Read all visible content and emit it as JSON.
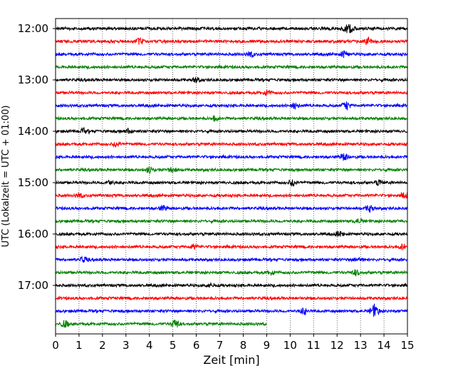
{
  "chart_data": {
    "type": "line",
    "title": "",
    "xlabel": "Zeit  [min]",
    "ylabel": "UTC (Lokalzeit = UTC + 01:00)",
    "xlim": [
      0,
      15
    ],
    "x_ticks": [
      0,
      1,
      2,
      3,
      4,
      5,
      6,
      7,
      8,
      9,
      10,
      11,
      12,
      13,
      14,
      15
    ],
    "y_tick_labels": [
      "12:00",
      "13:00",
      "14:00",
      "15:00",
      "16:00",
      "17:00"
    ],
    "grid": "vertical dotted",
    "colors": [
      "#000000",
      "#ff0000",
      "#0000ff",
      "#008000"
    ],
    "traces": [
      {
        "start": "12:00",
        "color": "#000000",
        "x_end": 15,
        "events": [
          {
            "x": 12.4,
            "amp": 2.2
          },
          {
            "x": 12.6,
            "amp": 2.0
          }
        ]
      },
      {
        "start": "12:15",
        "color": "#ff0000",
        "x_end": 15,
        "events": [
          {
            "x": 3.6,
            "amp": 2.0
          },
          {
            "x": 13.3,
            "amp": 2.4
          }
        ]
      },
      {
        "start": "12:30",
        "color": "#0000ff",
        "x_end": 15,
        "events": [
          {
            "x": 8.3,
            "amp": 1.6
          },
          {
            "x": 12.3,
            "amp": 1.8
          }
        ]
      },
      {
        "start": "12:45",
        "color": "#008000",
        "x_end": 15,
        "events": []
      },
      {
        "start": "13:00",
        "color": "#000000",
        "x_end": 15,
        "events": [
          {
            "x": 6.0,
            "amp": 1.6
          }
        ]
      },
      {
        "start": "13:15",
        "color": "#ff0000",
        "x_end": 15,
        "events": [
          {
            "x": 9.0,
            "amp": 1.5
          }
        ]
      },
      {
        "start": "13:30",
        "color": "#0000ff",
        "x_end": 15,
        "events": [
          {
            "x": 10.2,
            "amp": 1.9
          },
          {
            "x": 12.4,
            "amp": 2.6
          }
        ]
      },
      {
        "start": "13:45",
        "color": "#008000",
        "x_end": 15,
        "events": [
          {
            "x": 6.8,
            "amp": 1.4
          }
        ]
      },
      {
        "start": "14:00",
        "color": "#000000",
        "x_end": 15,
        "events": [
          {
            "x": 1.2,
            "amp": 1.4
          },
          {
            "x": 3.1,
            "amp": 1.4
          }
        ]
      },
      {
        "start": "14:15",
        "color": "#ff0000",
        "x_end": 15,
        "events": [
          {
            "x": 2.6,
            "amp": 1.4
          }
        ]
      },
      {
        "start": "14:30",
        "color": "#0000ff",
        "x_end": 15,
        "events": [
          {
            "x": 12.3,
            "amp": 2.4
          }
        ]
      },
      {
        "start": "14:45",
        "color": "#008000",
        "x_end": 15,
        "events": [
          {
            "x": 4.0,
            "amp": 1.7
          },
          {
            "x": 5.0,
            "amp": 1.5
          }
        ]
      },
      {
        "start": "15:00",
        "color": "#000000",
        "x_end": 15,
        "events": [
          {
            "x": 2.3,
            "amp": 1.5
          },
          {
            "x": 10.1,
            "amp": 1.9
          },
          {
            "x": 13.8,
            "amp": 1.6
          }
        ]
      },
      {
        "start": "15:15",
        "color": "#ff0000",
        "x_end": 15,
        "events": [
          {
            "x": 1.0,
            "amp": 1.3
          },
          {
            "x": 14.9,
            "amp": 1.5
          }
        ]
      },
      {
        "start": "15:30",
        "color": "#0000ff",
        "x_end": 15,
        "events": [
          {
            "x": 4.6,
            "amp": 1.4
          },
          {
            "x": 13.4,
            "amp": 1.9
          }
        ]
      },
      {
        "start": "15:45",
        "color": "#008000",
        "x_end": 15,
        "events": [
          {
            "x": 12.9,
            "amp": 1.3
          }
        ]
      },
      {
        "start": "16:00",
        "color": "#000000",
        "x_end": 15,
        "events": [
          {
            "x": 12.1,
            "amp": 1.5
          }
        ]
      },
      {
        "start": "16:15",
        "color": "#ff0000",
        "x_end": 15,
        "events": [
          {
            "x": 5.9,
            "amp": 1.4
          },
          {
            "x": 14.8,
            "amp": 1.5
          }
        ]
      },
      {
        "start": "16:30",
        "color": "#0000ff",
        "x_end": 15,
        "events": [
          {
            "x": 1.2,
            "amp": 1.6
          },
          {
            "x": 12.9,
            "amp": 1.7
          }
        ]
      },
      {
        "start": "16:45",
        "color": "#008000",
        "x_end": 15,
        "events": [
          {
            "x": 9.2,
            "amp": 1.4
          },
          {
            "x": 12.8,
            "amp": 1.5
          }
        ]
      },
      {
        "start": "17:00",
        "color": "#000000",
        "x_end": 15,
        "events": [
          {
            "x": 6.6,
            "amp": 1.3
          }
        ]
      },
      {
        "start": "17:15",
        "color": "#ff0000",
        "x_end": 15,
        "events": []
      },
      {
        "start": "17:30",
        "color": "#0000ff",
        "x_end": 15,
        "events": [
          {
            "x": 10.6,
            "amp": 2.0
          },
          {
            "x": 13.6,
            "amp": 4.2
          }
        ]
      },
      {
        "start": "17:45",
        "color": "#008000",
        "x_end": 9.0,
        "events": [
          {
            "x": 0.4,
            "amp": 2.0
          },
          {
            "x": 5.1,
            "amp": 3.0
          }
        ]
      }
    ]
  }
}
